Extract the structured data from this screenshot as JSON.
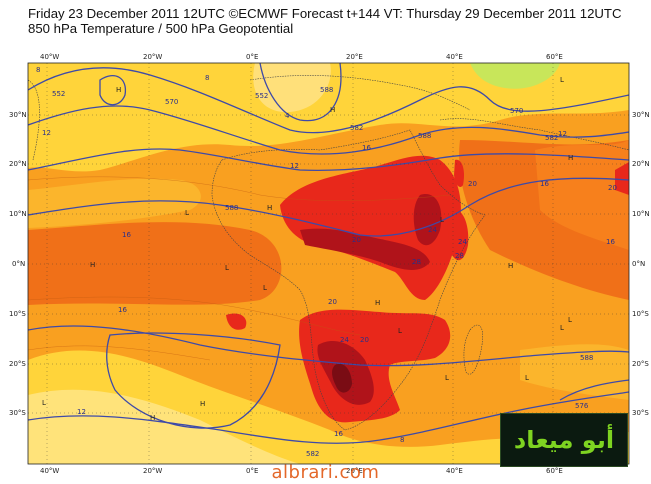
{
  "header": {
    "line1": "Friday 23 December 2011 12UTC ©ECMWF Forecast t+144 VT: Thursday 29 December 2011 12UTC",
    "line2": "850 hPa Temperature / 500 hPa Geopotential"
  },
  "axes": {
    "lon_top": [
      "40°W",
      "20°W",
      "0°E",
      "20°E",
      "40°E",
      "60°E"
    ],
    "lon_bottom": [
      "40°W",
      "20°W",
      "0°E",
      "20°E",
      "40°E",
      "60°E"
    ],
    "lat_left": [
      "30°N",
      "20°N",
      "10°N",
      "0°N",
      "10°S",
      "20°S",
      "30°S"
    ],
    "lat_right": [
      "30°N",
      "20°N",
      "10°N",
      "0°N",
      "10°S",
      "20°S",
      "30°S"
    ]
  },
  "contour_labels": {
    "geopotential": [
      "552",
      "570",
      "588",
      "588",
      "582",
      "552",
      "570",
      "588",
      "582",
      "582",
      "576",
      "588"
    ],
    "temperature": [
      "8",
      "12",
      "16",
      "20",
      "24",
      "28",
      "16",
      "12",
      "8",
      "16",
      "20",
      "24",
      "20",
      "12",
      "16",
      "20",
      "24",
      "28",
      "20",
      "16",
      "12",
      "8",
      "16",
      "4"
    ]
  },
  "pressure_marks": [
    "H",
    "H",
    "L",
    "L",
    "H",
    "L",
    "H",
    "L",
    "H",
    "L",
    "H",
    "L",
    "H",
    "L",
    "L",
    "H",
    "L",
    "L",
    "H",
    "L"
  ],
  "logo": {
    "arabic_text": "أبو ميعاد"
  },
  "watermark": "albrari.com",
  "colors": {
    "warm_yellow": "#ffd43a",
    "orange": "#f9a020",
    "dark_orange": "#f07018",
    "red": "#e8281b",
    "dark_red": "#b0131a",
    "deep_red": "#7a0c14",
    "light_green": "#c8e65a",
    "contour_blue": "#3e4aa8",
    "logo_green": "#7ed321"
  }
}
